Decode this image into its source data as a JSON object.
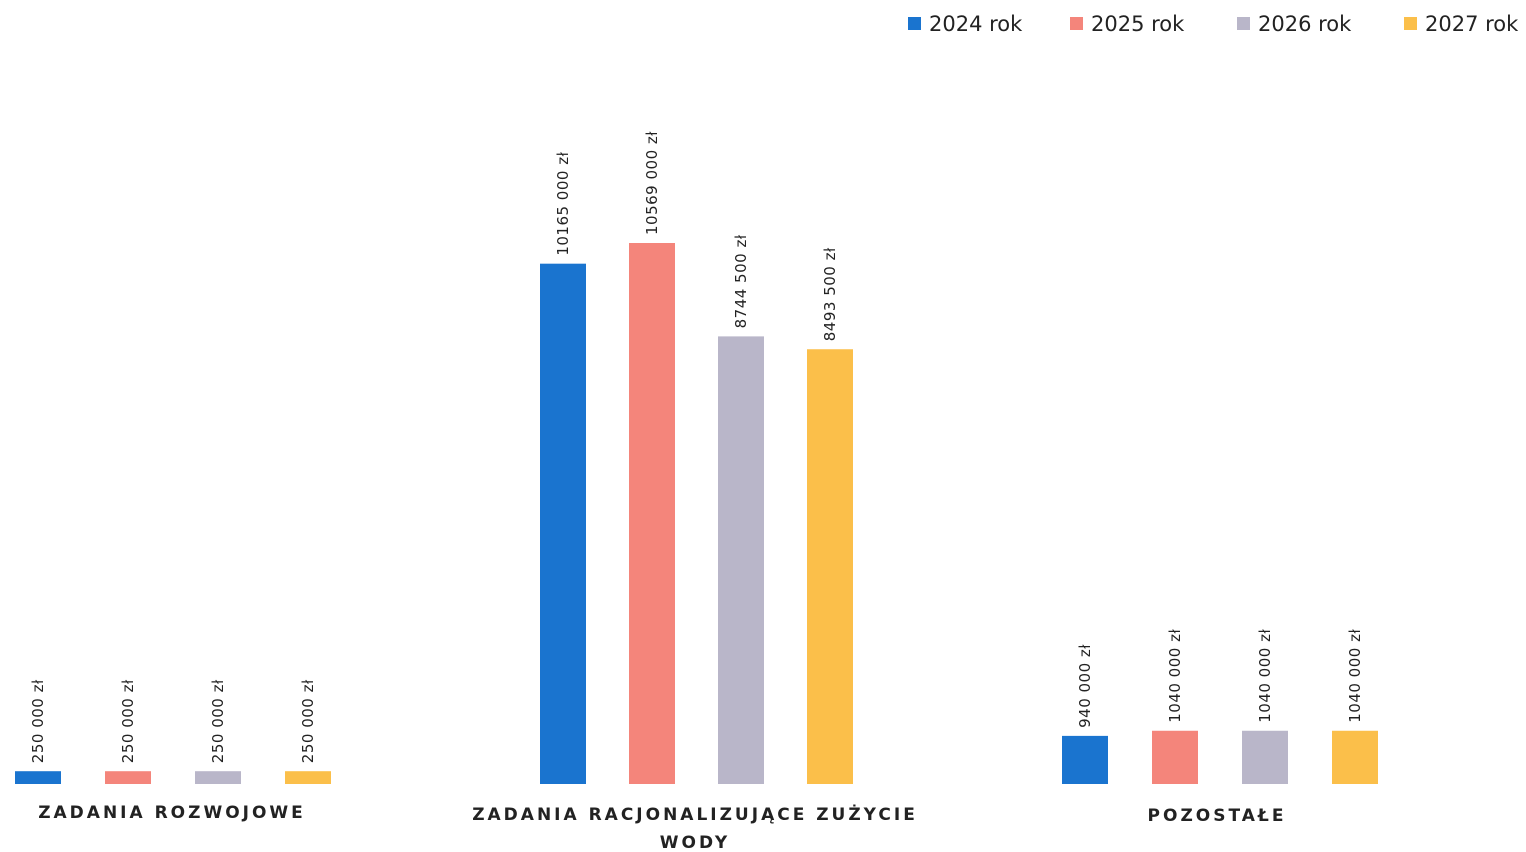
{
  "chart_data": {
    "type": "bar",
    "title": "",
    "xlabel": "",
    "ylabel": "",
    "grid": false,
    "legend_position": "top-right",
    "ylim": [
      0,
      12000000
    ],
    "categories": [
      [
        "ZADANIA ROZWOJOWE"
      ],
      [
        "ZADANIA RACJONALIZUJĄCE ZUŻYCIE",
        "WODY"
      ],
      [
        "POZOSTAŁE"
      ]
    ],
    "series": [
      {
        "name": "2024 rok",
        "color": "#1a74cf",
        "values": [
          250000,
          10165000,
          940000
        ],
        "labels": [
          "250 000 zł",
          "10165 000 zł",
          "940 000 zł"
        ]
      },
      {
        "name": "2025 rok",
        "color": "#f4857b",
        "values": [
          250000,
          10569000,
          1040000
        ],
        "labels": [
          "250 000 zł",
          "10569 000 zł",
          "1040 000 zł"
        ]
      },
      {
        "name": "2026 rok",
        "color": "#b9b6c9",
        "values": [
          250000,
          8744500,
          1040000
        ],
        "labels": [
          "250 000 zł",
          "8744 500 zł",
          "1040 000 zł"
        ]
      },
      {
        "name": "2027 rok",
        "color": "#fbbf4a",
        "values": [
          250000,
          8493500,
          1040000
        ],
        "labels": [
          "250 000 zł",
          "8493 500 zł",
          "1040 000 zł"
        ]
      }
    ]
  }
}
